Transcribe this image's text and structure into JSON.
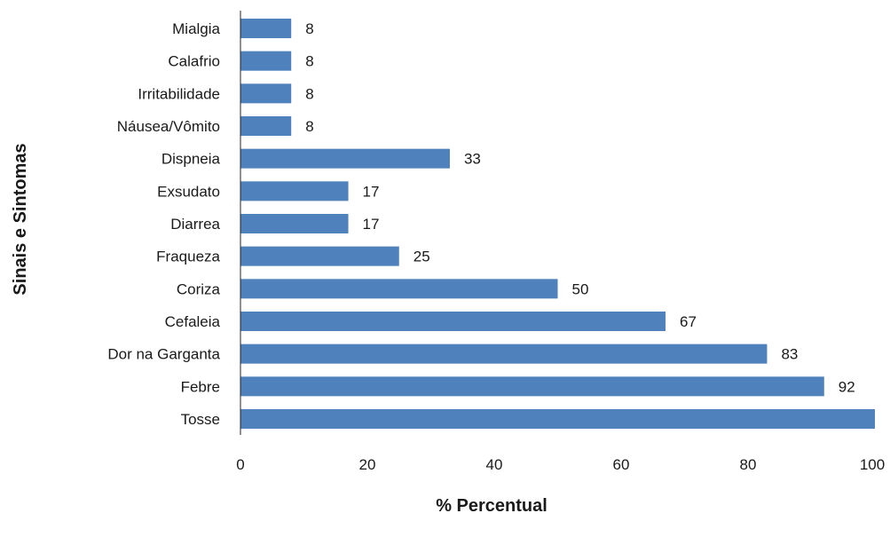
{
  "chart_data": {
    "type": "bar",
    "orientation": "horizontal",
    "categories": [
      "Mialgia",
      "Calafrio",
      "Irritabilidade",
      "Náusea/Vômito",
      "Dispneia",
      "Exsudato",
      "Diarrea",
      "Fraqueza",
      "Coriza",
      "Cefaleia",
      "Dor na Garganta",
      "Febre",
      "Tosse"
    ],
    "values": [
      8,
      8,
      8,
      8,
      33,
      17,
      17,
      25,
      50,
      67,
      83,
      92,
      100
    ],
    "data_labels": [
      "8",
      "8",
      "8",
      "8",
      "33",
      "17",
      "17",
      "25",
      "50",
      "67",
      "83",
      "92",
      ""
    ],
    "xlabel": "% Percentual",
    "ylabel": "Sinais e Sintomas",
    "xlim": [
      0,
      100
    ],
    "xticks": [
      0,
      20,
      40,
      60,
      80,
      100
    ],
    "grid": false,
    "legend": "none",
    "bar_color": "#4f81bd"
  }
}
